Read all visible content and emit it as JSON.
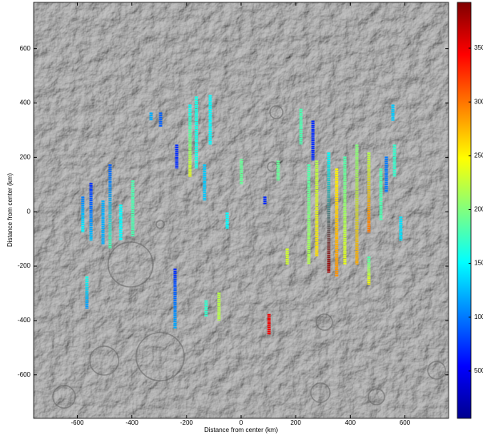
{
  "chart_data": {
    "type": "map",
    "xlabel": "Distance from center (km)",
    "ylabel": "Distance from center (km)",
    "xlim": [
      -760,
      760
    ],
    "ylim": [
      -760,
      770
    ],
    "xticks": [
      -600,
      -400,
      -200,
      0,
      200,
      400,
      600
    ],
    "yticks": [
      -600,
      -400,
      -200,
      0,
      200,
      400,
      600
    ],
    "clim": [
      60,
      3925
    ],
    "cticks": [
      500,
      1000,
      1500,
      2000,
      2500,
      3000,
      3500
    ],
    "tracks": [
      {
        "x": -580,
        "y": [
          56,
          -76
        ],
        "values": [
          1000,
          1500
        ]
      },
      {
        "x": -550,
        "y": [
          106,
          -106
        ],
        "values": [
          700,
          1300
        ]
      },
      {
        "x": -506,
        "y": [
          41,
          -121
        ],
        "values": [
          1200,
          1200
        ]
      },
      {
        "x": -480,
        "y": [
          174,
          -135
        ],
        "values": [
          900,
          1800
        ]
      },
      {
        "x": -441,
        "y": [
          26,
          -106
        ],
        "values": [
          1500,
          1500
        ]
      },
      {
        "x": -397,
        "y": [
          115,
          -91
        ],
        "values": [
          1800,
          1800
        ]
      },
      {
        "x": -330,
        "y": [
          365,
          335
        ],
        "values": [
          1200,
          1200
        ]
      },
      {
        "x": -295,
        "y": [
          365,
          312
        ],
        "values": [
          900,
          900
        ]
      },
      {
        "x": -236,
        "y": [
          247,
          159
        ],
        "values": [
          700,
          700
        ]
      },
      {
        "x": -187,
        "y": [
          394,
          129
        ],
        "values": [
          1500,
          2400
        ]
      },
      {
        "x": -164,
        "y": [
          424,
          159
        ],
        "values": [
          1600,
          1600
        ]
      },
      {
        "x": -113,
        "y": [
          429,
          247
        ],
        "values": [
          1500,
          1500
        ]
      },
      {
        "x": -134,
        "y": [
          174,
          41
        ],
        "values": [
          1300,
          1300
        ]
      },
      {
        "x": -242,
        "y": [
          -209,
          -429
        ],
        "values": [
          700,
          1200
        ]
      },
      {
        "x": -565,
        "y": [
          -238,
          -356
        ],
        "values": [
          1600,
          1100
        ]
      },
      {
        "x": -128,
        "y": [
          -326,
          -385
        ],
        "values": [
          1700,
          1700
        ]
      },
      {
        "x": -81,
        "y": [
          -297,
          -400
        ],
        "values": [
          2200,
          2200
        ]
      },
      {
        "x": 1,
        "y": [
          194,
          100
        ],
        "values": [
          1900,
          1900
        ]
      },
      {
        "x": -51,
        "y": [
          -3,
          -62
        ],
        "values": [
          1500,
          1500
        ]
      },
      {
        "x": 87,
        "y": [
          56,
          26
        ],
        "values": [
          700,
          700
        ]
      },
      {
        "x": 136,
        "y": [
          188,
          115
        ],
        "values": [
          1900,
          1900
        ]
      },
      {
        "x": 102,
        "y": [
          -376,
          -453
        ],
        "values": [
          3500,
          3500
        ]
      },
      {
        "x": 169,
        "y": [
          -135,
          -194
        ],
        "values": [
          2300,
          2300
        ]
      },
      {
        "x": 219,
        "y": [
          379,
          247
        ],
        "values": [
          1800,
          1800
        ]
      },
      {
        "x": 263,
        "y": [
          335,
          188
        ],
        "values": [
          700,
          700
        ]
      },
      {
        "x": 248,
        "y": [
          174,
          -194
        ],
        "values": [
          1800,
          2200
        ]
      },
      {
        "x": 277,
        "y": [
          188,
          -165
        ],
        "values": [
          2200,
          2600
        ]
      },
      {
        "x": 321,
        "y": [
          218,
          -224
        ],
        "values": [
          1500,
          3800
        ]
      },
      {
        "x": 350,
        "y": [
          159,
          -238
        ],
        "values": [
          2500,
          2900
        ]
      },
      {
        "x": 380,
        "y": [
          203,
          -194
        ],
        "values": [
          1800,
          2400
        ]
      },
      {
        "x": 424,
        "y": [
          247,
          -194
        ],
        "values": [
          2000,
          2800
        ]
      },
      {
        "x": 468,
        "y": [
          218,
          -76
        ],
        "values": [
          2200,
          3000
        ]
      },
      {
        "x": 512,
        "y": [
          159,
          -32
        ],
        "values": [
          1800,
          1800
        ]
      },
      {
        "x": 556,
        "y": [
          394,
          335
        ],
        "values": [
          1300,
          1300
        ]
      },
      {
        "x": 562,
        "y": [
          247,
          129
        ],
        "values": [
          1700,
          1700
        ]
      },
      {
        "x": 585,
        "y": [
          -18,
          -106
        ],
        "values": [
          1400,
          1400
        ]
      },
      {
        "x": 468,
        "y": [
          -165,
          -268
        ],
        "values": [
          1800,
          2500
        ]
      },
      {
        "x": 532,
        "y": [
          203,
          71
        ],
        "values": [
          1000,
          1000
        ]
      }
    ]
  }
}
